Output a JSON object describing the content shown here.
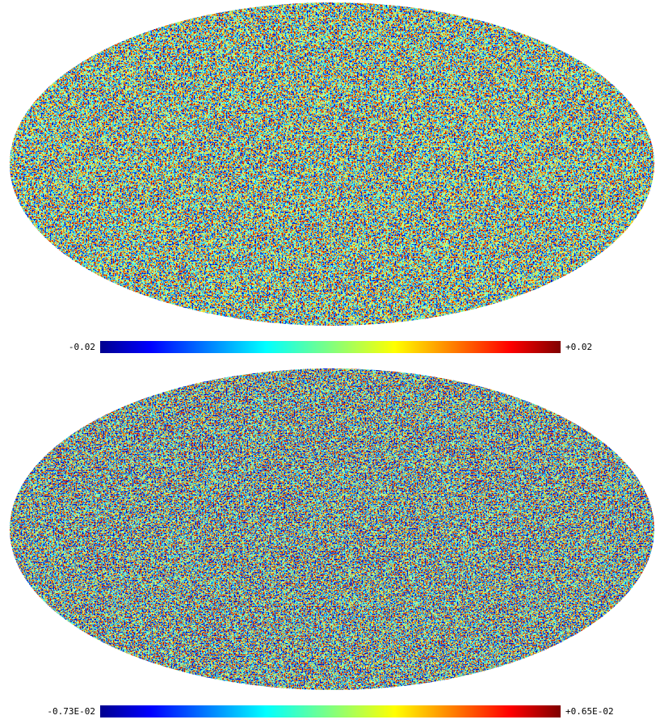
{
  "maps": [
    {
      "colorbar": {
        "min_label": "-0.02",
        "max_label": "+0.02"
      }
    },
    {
      "colorbar": {
        "min_label": "-0.73E-02",
        "max_label": "+0.65E-02"
      }
    }
  ]
}
